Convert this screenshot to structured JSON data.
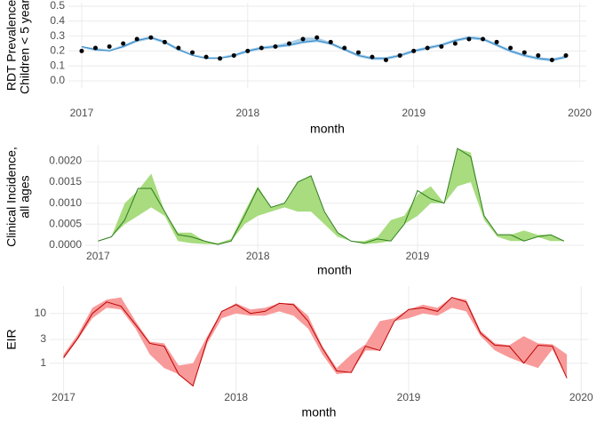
{
  "chart_data": [
    {
      "type": "line",
      "ylabel": [
        "RDT Prevalence,",
        "Children < 5 years"
      ],
      "xlabel": "month",
      "x": [
        2017,
        2017.083,
        2017.167,
        2017.25,
        2017.333,
        2017.417,
        2017.5,
        2017.583,
        2017.667,
        2017.75,
        2017.833,
        2017.917,
        2018,
        2018.083,
        2018.167,
        2018.25,
        2018.333,
        2018.417,
        2018.5,
        2018.583,
        2018.667,
        2018.75,
        2018.833,
        2018.917,
        2019,
        2019.083,
        2019.167,
        2019.25,
        2019.333,
        2019.417,
        2019.5,
        2019.583,
        2019.667,
        2019.75,
        2019.833,
        2019.917
      ],
      "xlim": [
        2016.92,
        2020.04
      ],
      "xticks": [
        2017,
        2018,
        2019,
        2020
      ],
      "ylim": [
        0,
        0.5
      ],
      "yticks": [
        {
          "value": 0,
          "label": "0.0"
        },
        0.1,
        0.2,
        0.3,
        0.4,
        0.5
      ],
      "grid": true,
      "band": {
        "color": "#a9cfe9",
        "lower": [
          0.22,
          0.2,
          0.2,
          0.22,
          0.26,
          0.28,
          0.25,
          0.2,
          0.17,
          0.15,
          0.15,
          0.16,
          0.19,
          0.21,
          0.22,
          0.23,
          0.25,
          0.26,
          0.24,
          0.2,
          0.16,
          0.14,
          0.14,
          0.16,
          0.19,
          0.21,
          0.23,
          0.26,
          0.28,
          0.27,
          0.23,
          0.19,
          0.16,
          0.14,
          0.13,
          0.15
        ],
        "upper": [
          0.23,
          0.22,
          0.21,
          0.24,
          0.28,
          0.3,
          0.27,
          0.22,
          0.18,
          0.16,
          0.16,
          0.18,
          0.21,
          0.23,
          0.24,
          0.26,
          0.29,
          0.29,
          0.26,
          0.22,
          0.18,
          0.16,
          0.16,
          0.18,
          0.21,
          0.23,
          0.25,
          0.28,
          0.3,
          0.29,
          0.25,
          0.21,
          0.18,
          0.16,
          0.15,
          0.17
        ]
      },
      "line": {
        "color": "#2b86c9",
        "values": [
          0.23,
          0.21,
          0.2,
          0.23,
          0.27,
          0.29,
          0.26,
          0.21,
          0.17,
          0.15,
          0.15,
          0.17,
          0.2,
          0.22,
          0.23,
          0.24,
          0.26,
          0.27,
          0.25,
          0.21,
          0.17,
          0.15,
          0.15,
          0.17,
          0.2,
          0.22,
          0.24,
          0.27,
          0.29,
          0.28,
          0.24,
          0.2,
          0.17,
          0.15,
          0.14,
          0.16
        ]
      },
      "points": {
        "color": "#000000",
        "values": [
          0.2,
          0.22,
          0.23,
          0.25,
          0.28,
          0.29,
          0.26,
          0.22,
          0.19,
          0.16,
          0.15,
          0.17,
          0.2,
          0.22,
          0.23,
          0.25,
          0.28,
          0.29,
          0.26,
          0.22,
          0.19,
          0.16,
          0.14,
          0.17,
          0.2,
          0.22,
          0.23,
          0.25,
          0.28,
          0.28,
          0.26,
          0.22,
          0.19,
          0.17,
          0.14,
          0.17
        ]
      }
    },
    {
      "type": "line",
      "ylabel": [
        "Clinical Incidence,",
        "all ages"
      ],
      "xlabel": "month",
      "x": [
        2017,
        2017.083,
        2017.167,
        2017.25,
        2017.333,
        2017.417,
        2017.5,
        2017.583,
        2017.667,
        2017.75,
        2017.833,
        2017.917,
        2018,
        2018.083,
        2018.167,
        2018.25,
        2018.333,
        2018.417,
        2018.5,
        2018.583,
        2018.667,
        2018.75,
        2018.833,
        2018.917,
        2019,
        2019.083,
        2019.167,
        2019.25,
        2019.333,
        2019.417,
        2019.5,
        2019.583,
        2019.667,
        2019.75,
        2019.833,
        2019.917
      ],
      "xlim": [
        2016.92,
        2020.04
      ],
      "xticks": [
        2017,
        2018,
        2019
      ],
      "ylim": [
        0,
        0.0023
      ],
      "yticks": [
        {
          "value": 0,
          "label": "0.0000"
        },
        {
          "value": 0.0005,
          "label": "0.0005"
        },
        {
          "value": 0.001,
          "label": "0.0010"
        },
        {
          "value": 0.0015,
          "label": "0.0015"
        },
        {
          "value": 0.002,
          "label": "0.0020"
        }
      ],
      "grid": true,
      "band": {
        "color": "#a8dc7f",
        "lower": [
          0.0001,
          0.0002,
          0.0005,
          0.0007,
          0.0009,
          0.0007,
          0.0001,
          5e-05,
          3e-05,
          2e-05,
          0.0001,
          0.0005,
          0.0007,
          0.0008,
          0.0009,
          0.0008,
          0.0008,
          0.0005,
          0.0002,
          0.0001,
          3e-05,
          5e-05,
          0.0001,
          0.0005,
          0.0007,
          0.001,
          0.001,
          0.0014,
          0.0015,
          0.0006,
          0.0002,
          0.0001,
          0.0001,
          0.0002,
          0.0001,
          0.0001
        ],
        "upper": [
          0.0001,
          0.0002,
          0.001,
          0.0013,
          0.0017,
          0.0008,
          0.0003,
          0.0003,
          0.0001,
          5e-05,
          0.00015,
          0.0008,
          0.0014,
          0.0009,
          0.001,
          0.0015,
          0.00165,
          0.0008,
          0.0003,
          0.0001,
          0.0001,
          0.0002,
          0.0006,
          0.0007,
          0.0012,
          0.0014,
          0.001,
          0.0023,
          0.0022,
          0.0007,
          0.00025,
          0.00025,
          0.00035,
          0.00025,
          0.00025,
          0.0001
        ]
      },
      "line": {
        "color": "#2e7d1f",
        "values": [
          0.0001,
          0.0002,
          0.0006,
          0.00135,
          0.00135,
          0.0008,
          0.00025,
          0.0002,
          0.0001,
          2e-05,
          0.0001,
          0.0007,
          0.00135,
          0.0009,
          0.001,
          0.0015,
          0.00165,
          0.0008,
          0.0003,
          0.0001,
          5e-05,
          0.00015,
          0.0001,
          0.0005,
          0.0013,
          0.0011,
          0.001,
          0.0023,
          0.0021,
          0.0007,
          0.00025,
          0.00025,
          0.0001,
          0.0002,
          0.00025,
          0.0001
        ]
      }
    },
    {
      "type": "line",
      "ylabel": [
        "EIR"
      ],
      "xlabel": "month",
      "log": true,
      "x": [
        2017,
        2017.083,
        2017.167,
        2017.25,
        2017.333,
        2017.417,
        2017.5,
        2017.583,
        2017.667,
        2017.75,
        2017.833,
        2017.917,
        2018,
        2018.083,
        2018.167,
        2018.25,
        2018.333,
        2018.417,
        2018.5,
        2018.583,
        2018.667,
        2018.75,
        2018.833,
        2018.917,
        2019,
        2019.083,
        2019.167,
        2019.25,
        2019.333,
        2019.417,
        2019.5,
        2019.583,
        2019.667,
        2019.75,
        2019.833,
        2019.917
      ],
      "xlim": [
        2016.92,
        2020.04
      ],
      "xticks": [
        2017,
        2018,
        2019,
        2020
      ],
      "ylim": [
        0.3,
        30
      ],
      "yticks": [
        1,
        3,
        10
      ],
      "grid": true,
      "band": {
        "color": "#f89a9a",
        "lower": [
          1.2,
          3,
          8,
          13,
          12,
          5,
          1.5,
          0.8,
          0.6,
          0.35,
          2.5,
          8,
          10,
          9,
          9,
          11,
          9,
          5,
          1.5,
          0.6,
          0.65,
          1.8,
          1.8,
          7,
          8,
          10,
          9,
          13,
          11,
          3.5,
          1.8,
          1.3,
          1,
          0.8,
          1.9,
          0.5
        ],
        "upper": [
          1.5,
          3.8,
          13,
          19,
          21,
          7,
          2.7,
          2.5,
          0.9,
          1.0,
          3.5,
          11,
          16,
          12,
          13,
          16,
          16,
          9,
          2.2,
          0.8,
          1.5,
          2.4,
          7,
          8,
          12,
          15,
          13,
          21,
          19,
          4.5,
          2.5,
          2.3,
          3.5,
          2.5,
          2.4,
          1.5
        ]
      },
      "line": {
        "color": "#c00000",
        "values": [
          1.3,
          3.2,
          10,
          17,
          14,
          6,
          2.5,
          2.2,
          0.6,
          0.35,
          3,
          11,
          15,
          10,
          11,
          16,
          15,
          7,
          2,
          0.7,
          0.65,
          2.2,
          1.8,
          7,
          12,
          13,
          11,
          21,
          17,
          4,
          2.3,
          2.2,
          1,
          2.3,
          2.2,
          0.5
        ]
      }
    }
  ]
}
